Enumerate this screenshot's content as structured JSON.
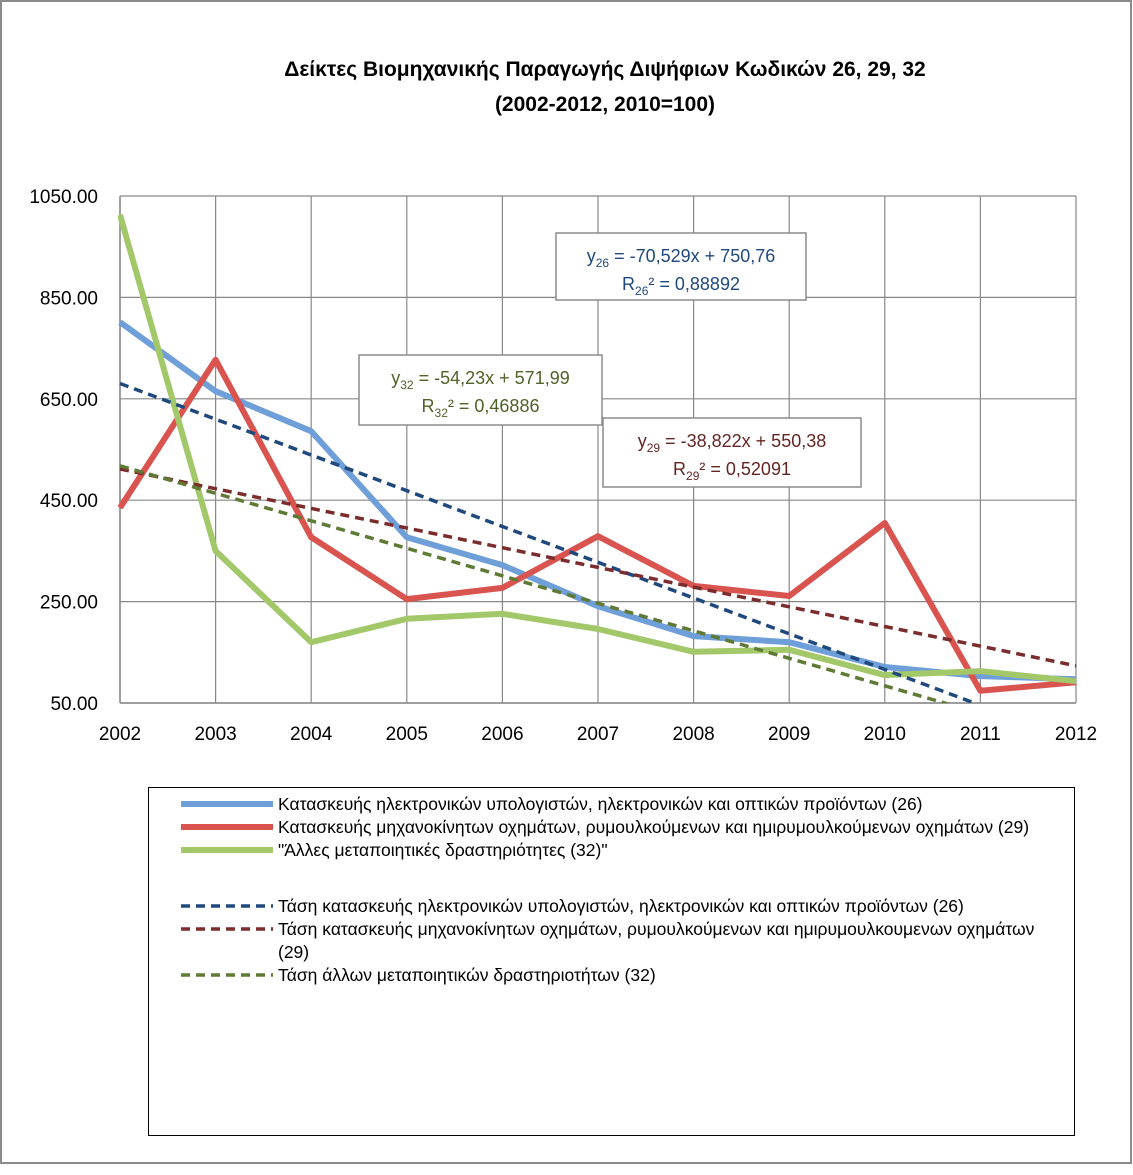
{
  "chart_data": {
    "type": "line",
    "title": [
      "Δείκτες Βιομηχανικής Παραγωγής Διψήφιων Κωδικών 26, 29, 32",
      "(2002-2012, 2010=100)"
    ],
    "categories": [
      "2002",
      "2003",
      "2004",
      "2005",
      "2006",
      "2007",
      "2008",
      "2009",
      "2010",
      "2011",
      "2012"
    ],
    "ylim": [
      50,
      1050
    ],
    "yticks": [
      {
        "value": 50,
        "label": "50.00"
      },
      {
        "value": 250,
        "label": "250.00"
      },
      {
        "value": 450,
        "label": "450.00"
      },
      {
        "value": 650,
        "label": "650.00"
      },
      {
        "value": 850,
        "label": "850.00"
      },
      {
        "value": 1050,
        "label": "1050.00"
      }
    ],
    "grid": true,
    "series": [
      {
        "name": "Κατασκευής ηλεκτρονικών υπολογιστών, ηλεκτρονικών και οπτικών προϊόντων (26)",
        "color": "#6f9fd8",
        "style": "solid",
        "values": [
          801,
          665,
          586,
          377,
          322,
          241,
          182,
          170,
          121,
          103,
          97
        ]
      },
      {
        "name": "Κατασκευής μηχανοκίνητων οχημάτων, ρυμουλκούμενων και ημιρυμουλκούμενων οχημάτων (29)",
        "color": "#d9534f",
        "style": "solid",
        "values": [
          435,
          727,
          377,
          255,
          277,
          379,
          281,
          261,
          405,
          74,
          91
        ]
      },
      {
        "name": "\"Άλλες μεταποιητικές δραστηριότητες (32)\"",
        "color": "#a3c86a",
        "style": "solid",
        "values": [
          1013,
          350,
          170,
          216,
          226,
          196,
          151,
          155,
          105,
          113,
          93
        ]
      },
      {
        "name": "Τάση κατασκευής ηλεκτρονικών υπολογιστών, ηλεκτρονικών και οπτικών προϊόντων (26)",
        "color": "#1f497d",
        "style": "dashed",
        "values": [
          680.23,
          609.7,
          539.17,
          468.64,
          398.12,
          327.59,
          257.06,
          186.53,
          116.0,
          45.47,
          -25.06
        ]
      },
      {
        "name": "Τάση κατασκευής μηχανοκίνητων οχημάτων, ρυμουλκούμενων και ημιρυμουλκουμενων οχημάτων (29)",
        "color": "#7b2c2c",
        "style": "dashed",
        "values": [
          511.56,
          472.74,
          433.91,
          395.09,
          356.27,
          317.45,
          278.63,
          239.8,
          200.98,
          162.16,
          123.34
        ]
      },
      {
        "name": "Τάση άλλων μεταποιητικών δραστηριοτήτων (32)",
        "color": "#5e7a34",
        "style": "dashed",
        "values": [
          517.76,
          463.53,
          409.3,
          355.07,
          300.84,
          246.61,
          192.38,
          138.15,
          83.92,
          29.69,
          -24.54
        ]
      }
    ],
    "annotations": [
      {
        "y_label": "y",
        "subscript": "26",
        "equation": " = -70,529x + 750,76",
        "r_label": "R",
        "r_squared": "² = 0,88892",
        "color": "#1f497d"
      },
      {
        "y_label": "y",
        "subscript": "32",
        "equation": " = -54,23x + 571,99",
        "r_label": "R",
        "r_squared": "² = 0,46886",
        "color": "#4f6228"
      },
      {
        "y_label": "y",
        "subscript": "29",
        "equation": " = -38,822x + 550,38",
        "r_label": "R",
        "r_squared": "² = 0,52091",
        "color": "#632523"
      }
    ]
  }
}
